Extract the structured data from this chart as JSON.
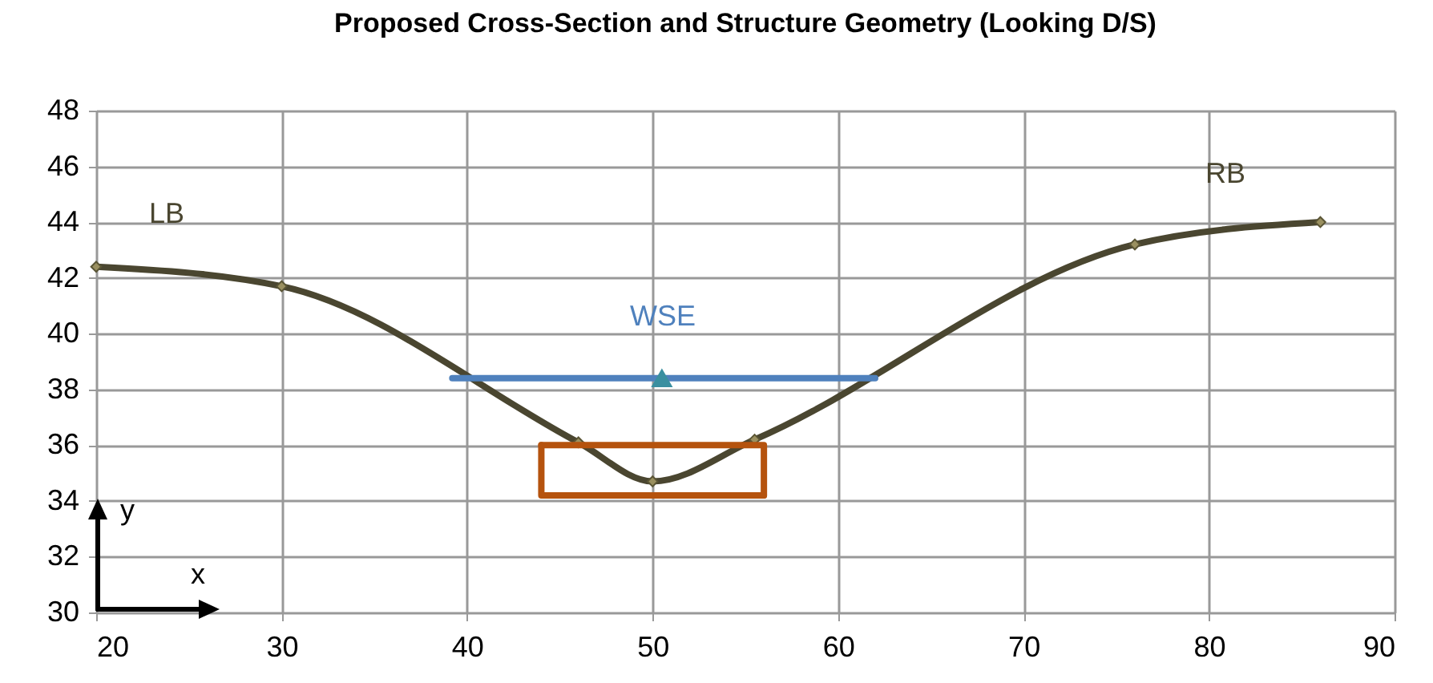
{
  "chart_data": {
    "type": "line",
    "title": "Proposed Cross-Section and Structure Geometry (Looking D/S)",
    "xlim": [
      20,
      90
    ],
    "xticks": [
      20,
      30,
      40,
      50,
      60,
      70,
      80,
      90
    ],
    "ylim": [
      30,
      48
    ],
    "yticks": [
      30,
      32,
      34,
      36,
      38,
      40,
      42,
      44,
      46,
      48
    ],
    "grid": true,
    "series": [
      {
        "color": "#4a4630",
        "marker": "diamond",
        "x": [
          20,
          30,
          46,
          50,
          55.5,
          76,
          86
        ],
        "values": [
          42.4,
          41.7,
          36.1,
          34.7,
          36.2,
          43.2,
          44
        ]
      },
      {
        "color": "#4f81bd",
        "marker": "none",
        "x": [
          39.2,
          62
        ],
        "values": [
          38.4,
          38.4
        ]
      },
      {
        "type": "scatter",
        "color": "#3a8fa0",
        "marker": "triangle",
        "x": [
          50.5
        ],
        "values": [
          38.4
        ]
      },
      {
        "color": "#b5530e",
        "marker": "none",
        "x": [
          44,
          44,
          56
        ],
        "values": [
          36,
          34.2,
          34.2
        ]
      },
      {
        "color": "#b5530e",
        "marker": "none",
        "x": [
          44,
          56,
          56
        ],
        "values": [
          36,
          36,
          34.2
        ]
      }
    ],
    "annotations": [
      "LB",
      "RB",
      "WSE",
      "y",
      "x"
    ]
  }
}
